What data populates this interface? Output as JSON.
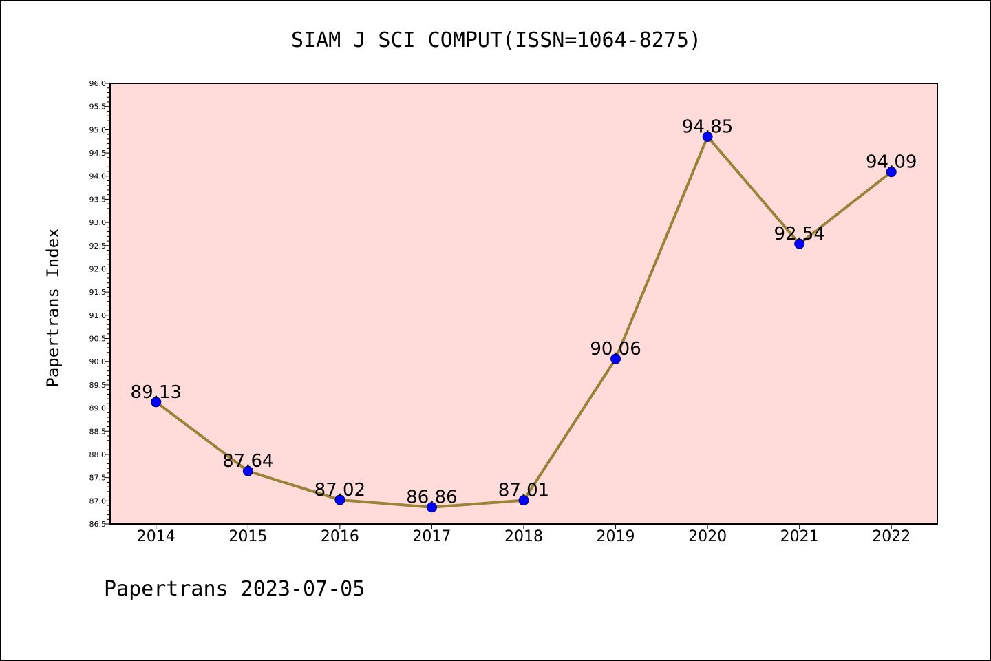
{
  "chart_data": {
    "type": "line",
    "title": "SIAM J SCI COMPUT(ISSN=1064-8275)",
    "ylabel": "Papertrans Index",
    "xlabel": "",
    "footer": "Papertrans 2023-07-05",
    "categories": [
      "2014",
      "2015",
      "2016",
      "2017",
      "2018",
      "2019",
      "2020",
      "2021",
      "2022"
    ],
    "values": [
      89.13,
      87.64,
      87.02,
      86.86,
      87.01,
      90.06,
      94.85,
      92.54,
      94.09
    ],
    "data_labels": [
      "89.13",
      "87.64",
      "87.02",
      "86.86",
      "87.01",
      "90.06",
      "94.85",
      "92.54",
      "94.09"
    ],
    "ylim": [
      86.5,
      96.0
    ],
    "ytick_step": 0.5,
    "yminor_step": 0.1,
    "grid": false,
    "legend": "none",
    "colors": {
      "plot_background": "#ffdcd9",
      "line": "#9b8239",
      "marker_fill": "#0000ff",
      "marker_edge": "#000066",
      "axes": "#000000"
    }
  }
}
